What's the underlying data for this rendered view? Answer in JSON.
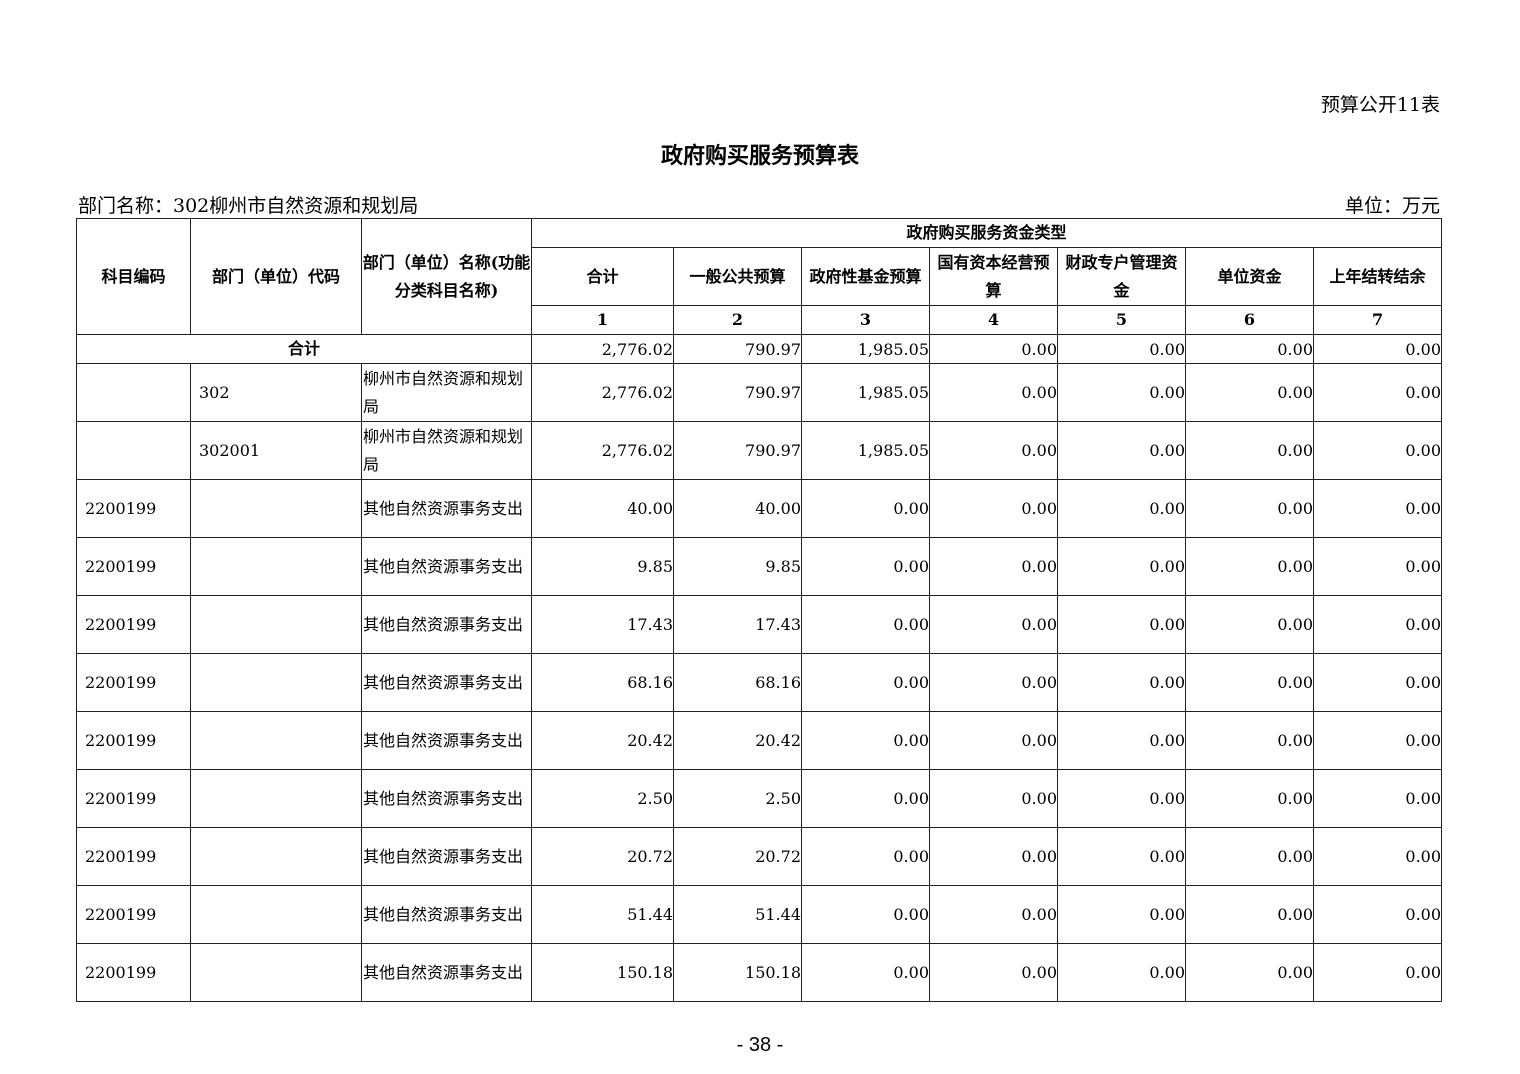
{
  "form_number": "预算公开11表",
  "title": "政府购买服务预算表",
  "department": "部门名称：302柳州市自然资源和规划局",
  "unit": "单位：万元",
  "table": {
    "headers": {
      "subject_code": "科目编码",
      "dept_code": "部门（单位）代码",
      "dept_name": "部门（单位）名称(功能分类科目名称)",
      "group": "政府购买服务资金类型",
      "columns": [
        "合计",
        "一般公共预算",
        "政府性基金预算",
        "国有资本经营预算",
        "财政专户管理资金",
        "单位资金",
        "上年结转结余"
      ],
      "column_numbers": [
        "1",
        "2",
        "3",
        "4",
        "5",
        "6",
        "7"
      ]
    },
    "total": {
      "label": "合计",
      "values": [
        "2,776.02",
        "790.97",
        "1,985.05",
        "0.00",
        "0.00",
        "0.00",
        "0.00"
      ]
    },
    "rows": [
      {
        "subject_code": "",
        "dept_code": "302",
        "name": "柳州市自然资源和规划局",
        "values": [
          "2,776.02",
          "790.97",
          "1,985.05",
          "0.00",
          "0.00",
          "0.00",
          "0.00"
        ]
      },
      {
        "subject_code": "",
        "dept_code": "302001",
        "name": "柳州市自然资源和规划局",
        "values": [
          "2,776.02",
          "790.97",
          "1,985.05",
          "0.00",
          "0.00",
          "0.00",
          "0.00"
        ]
      },
      {
        "subject_code": "2200199",
        "dept_code": "",
        "name": "其他自然资源事务支出",
        "values": [
          "40.00",
          "40.00",
          "0.00",
          "0.00",
          "0.00",
          "0.00",
          "0.00"
        ]
      },
      {
        "subject_code": "2200199",
        "dept_code": "",
        "name": "其他自然资源事务支出",
        "values": [
          "9.85",
          "9.85",
          "0.00",
          "0.00",
          "0.00",
          "0.00",
          "0.00"
        ]
      },
      {
        "subject_code": "2200199",
        "dept_code": "",
        "name": "其他自然资源事务支出",
        "values": [
          "17.43",
          "17.43",
          "0.00",
          "0.00",
          "0.00",
          "0.00",
          "0.00"
        ]
      },
      {
        "subject_code": "2200199",
        "dept_code": "",
        "name": "其他自然资源事务支出",
        "values": [
          "68.16",
          "68.16",
          "0.00",
          "0.00",
          "0.00",
          "0.00",
          "0.00"
        ]
      },
      {
        "subject_code": "2200199",
        "dept_code": "",
        "name": "其他自然资源事务支出",
        "values": [
          "20.42",
          "20.42",
          "0.00",
          "0.00",
          "0.00",
          "0.00",
          "0.00"
        ]
      },
      {
        "subject_code": "2200199",
        "dept_code": "",
        "name": "其他自然资源事务支出",
        "values": [
          "2.50",
          "2.50",
          "0.00",
          "0.00",
          "0.00",
          "0.00",
          "0.00"
        ]
      },
      {
        "subject_code": "2200199",
        "dept_code": "",
        "name": "其他自然资源事务支出",
        "values": [
          "20.72",
          "20.72",
          "0.00",
          "0.00",
          "0.00",
          "0.00",
          "0.00"
        ]
      },
      {
        "subject_code": "2200199",
        "dept_code": "",
        "name": "其他自然资源事务支出",
        "values": [
          "51.44",
          "51.44",
          "0.00",
          "0.00",
          "0.00",
          "0.00",
          "0.00"
        ]
      },
      {
        "subject_code": "2200199",
        "dept_code": "",
        "name": "其他自然资源事务支出",
        "values": [
          "150.18",
          "150.18",
          "0.00",
          "0.00",
          "0.00",
          "0.00",
          "0.00"
        ]
      }
    ]
  },
  "page_number": "- 38 -"
}
